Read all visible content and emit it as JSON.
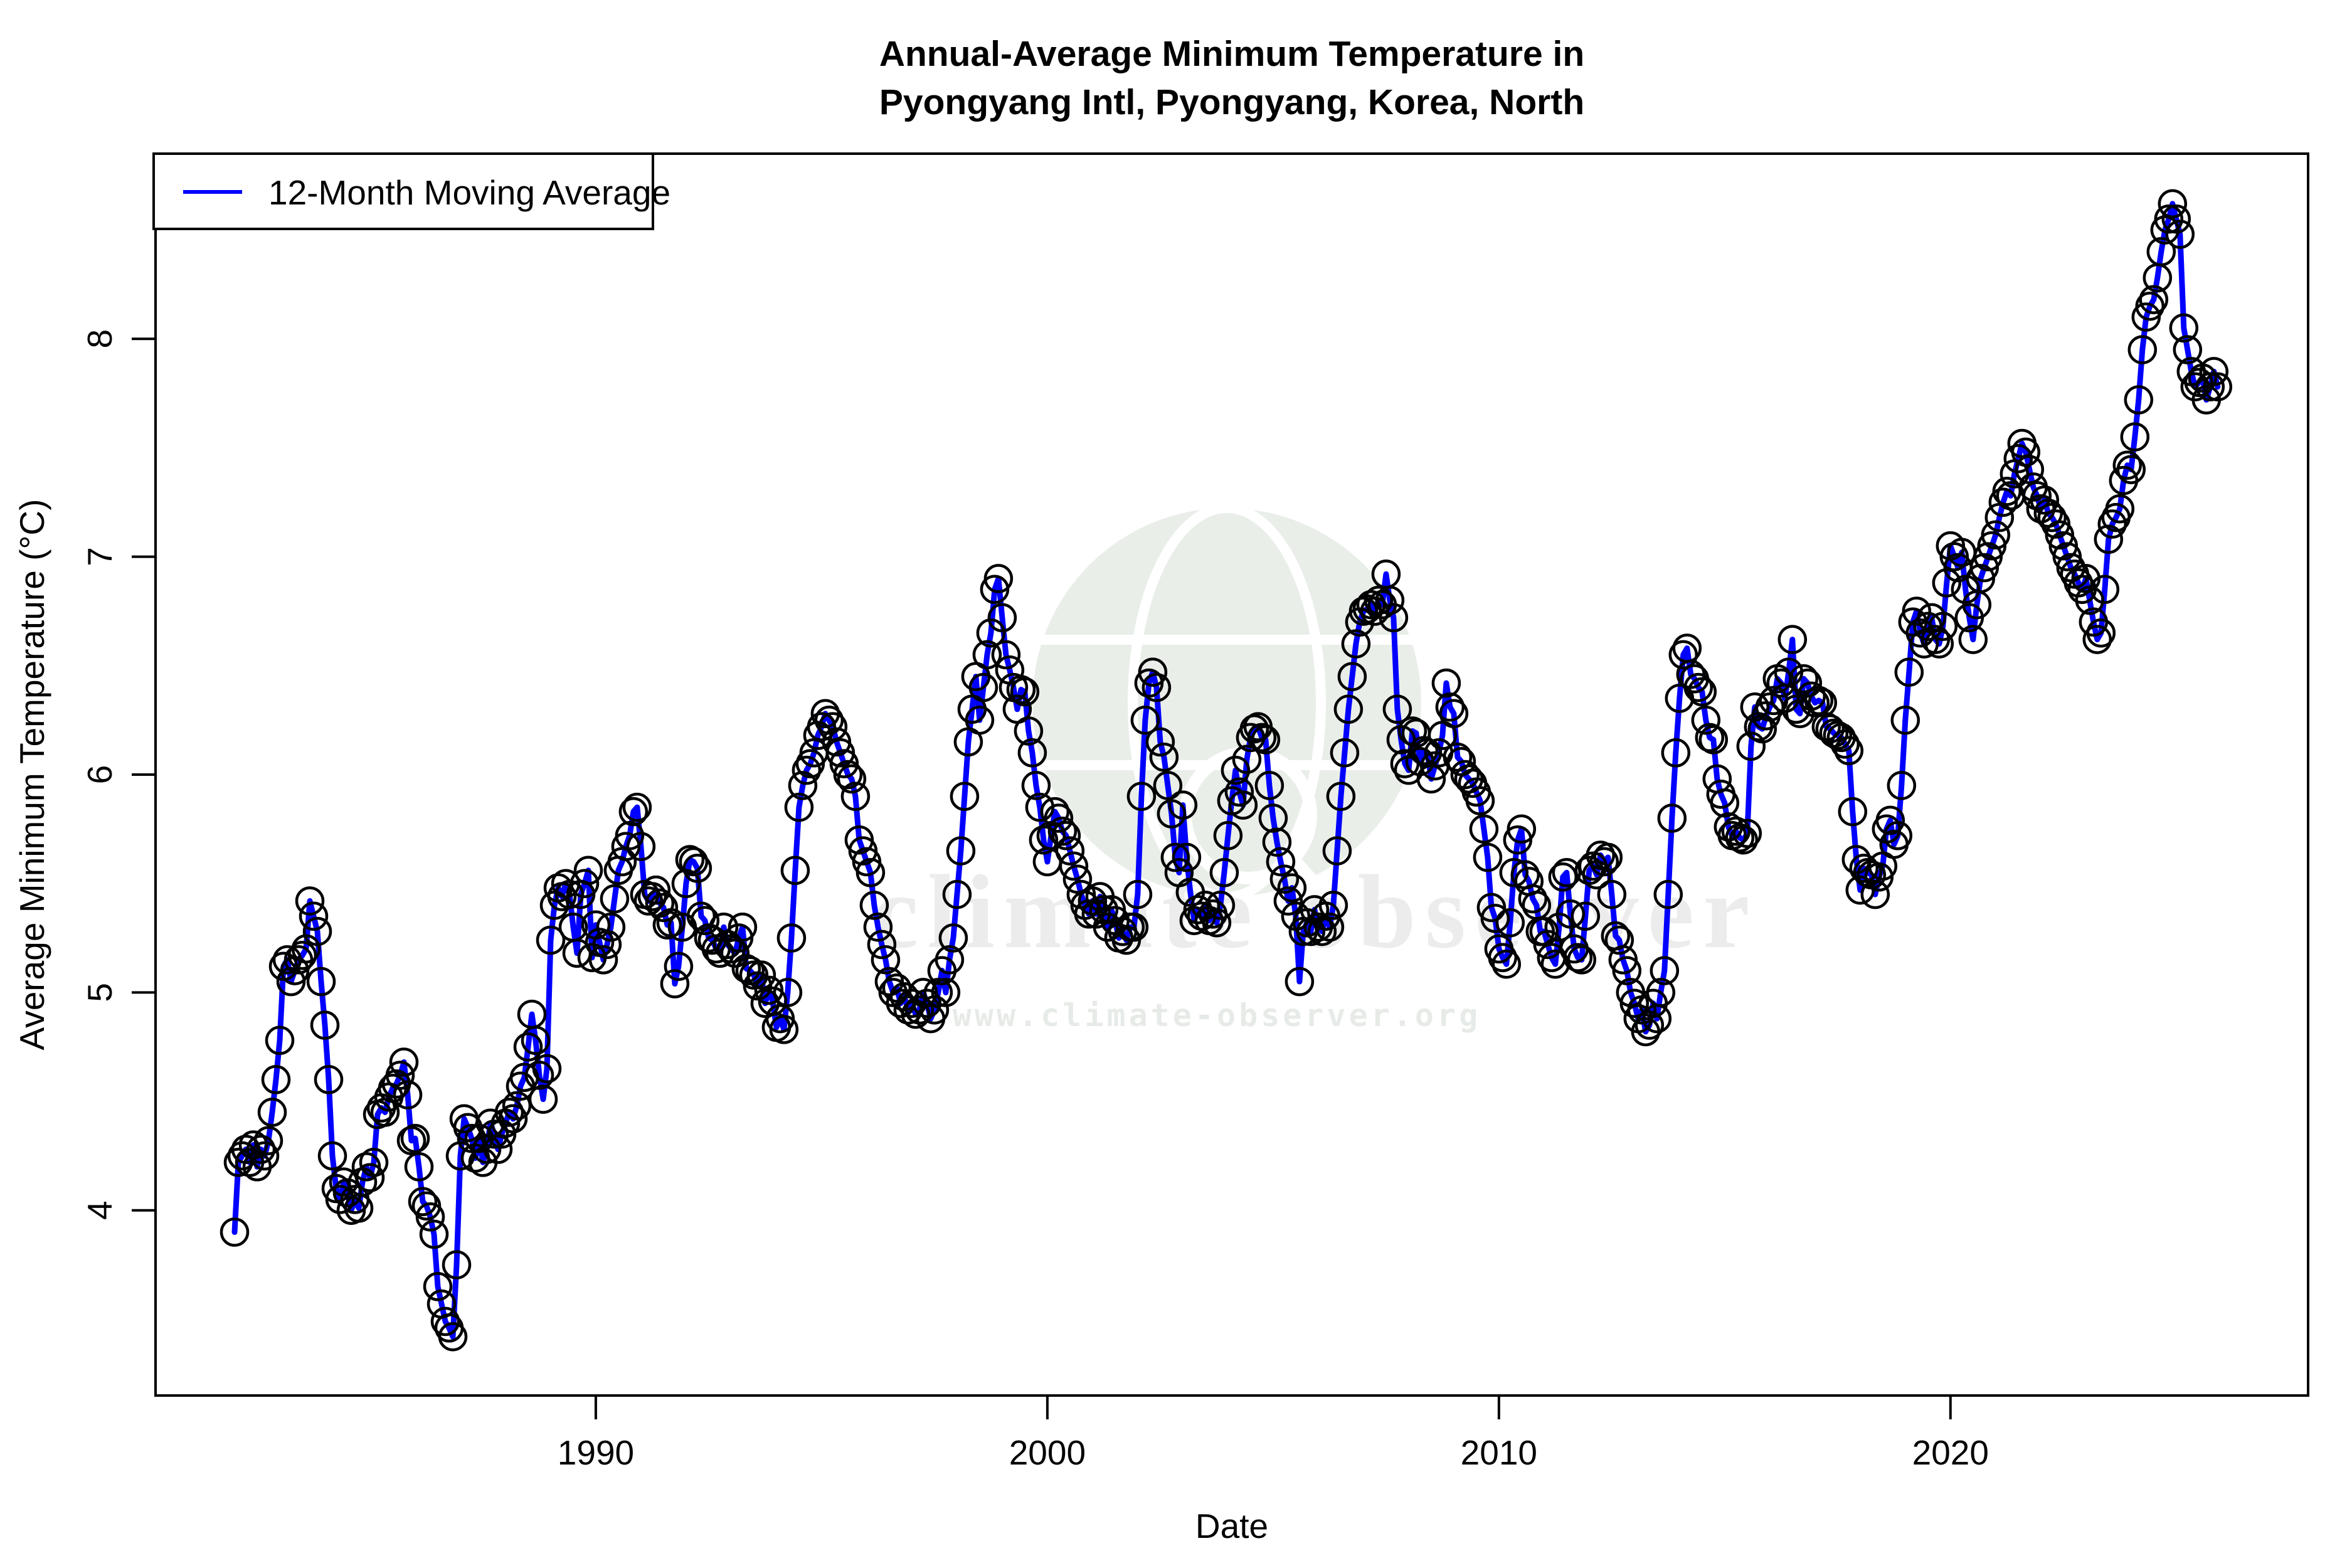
{
  "title": {
    "line1": "Annual-Average Minimum Temperature in",
    "line2": "Pyongyang Intl, Pyongyang, Korea, North"
  },
  "legend": {
    "label": "12-Month Moving Average",
    "line_color": "#0000ff"
  },
  "watermark": {
    "brand_text": "climate observer",
    "url_text": "www.climate-observer.org",
    "globe_icon": "globe-magnifier-icon",
    "color_globe": "#e9eee9",
    "color_text": "#ececec"
  },
  "chart_data": {
    "type": "line",
    "title": "Annual-Average Minimum Temperature in Pyongyang Intl, Pyongyang, Korea, North",
    "xlabel": "Date",
    "ylabel": "Average Minimum Temperature (°C)",
    "legend_position": "top-left",
    "grid": false,
    "xlim": [
      1980.25,
      2027.92
    ],
    "ylim": [
      3.15,
      8.85
    ],
    "x_ticks": [
      {
        "year": 1990,
        "label": "1990"
      },
      {
        "year": 2000,
        "label": "2000"
      },
      {
        "year": 2010,
        "label": "2010"
      },
      {
        "year": 2020,
        "label": "2020"
      }
    ],
    "y_ticks": [
      {
        "value": 4,
        "label": "4"
      },
      {
        "value": 5,
        "label": "5"
      },
      {
        "value": 6,
        "label": "6"
      },
      {
        "value": 7,
        "label": "7"
      },
      {
        "value": 8,
        "label": "8"
      }
    ],
    "line_color": "#0000ff",
    "marker": "open-circle",
    "marker_color": "#000000",
    "series_name": "12-Month Moving Average",
    "start_year": 1982,
    "monthly_values_by_year": {
      "1982": [
        3.9,
        4.22,
        4.25,
        4.28,
        4.22,
        4.3,
        4.2,
        4.28,
        4.25,
        4.32,
        4.45,
        4.6
      ],
      "1983": [
        4.78,
        5.12,
        5.15,
        5.05,
        5.1,
        5.15,
        5.17,
        5.2,
        5.42,
        5.35,
        5.28,
        5.05
      ],
      "1984": [
        4.85,
        4.6,
        4.25,
        4.1,
        4.05,
        4.13,
        4.08,
        4.0,
        4.05,
        4.01,
        4.13,
        4.2
      ],
      "1985": [
        4.15,
        4.22,
        4.44,
        4.47,
        4.45,
        4.52,
        4.56,
        4.58,
        4.62,
        4.68,
        4.53,
        4.32
      ],
      "1986": [
        4.33,
        4.2,
        4.04,
        4.02,
        3.97,
        3.89,
        3.65,
        3.57,
        3.49,
        3.46,
        3.42,
        3.75
      ],
      "1987": [
        4.25,
        4.42,
        4.38,
        4.33,
        4.24,
        4.33,
        4.22,
        4.28,
        4.4,
        4.35,
        4.28,
        4.35
      ],
      "1988": [
        4.4,
        4.45,
        4.42,
        4.48,
        4.57,
        4.61,
        4.75,
        4.9,
        4.78,
        4.62,
        4.51,
        4.65
      ],
      "1989": [
        5.24,
        5.4,
        5.48,
        5.44,
        5.5,
        5.45,
        5.3,
        5.18,
        5.45,
        5.5,
        5.56,
        5.16
      ],
      "1990": [
        5.31,
        5.23,
        5.15,
        5.22,
        5.3,
        5.43,
        5.56,
        5.6,
        5.67,
        5.72,
        5.83,
        5.85
      ],
      "1991": [
        5.67,
        5.45,
        5.42,
        5.44,
        5.47,
        5.41,
        5.39,
        5.31,
        5.32,
        5.04,
        5.12,
        5.3
      ],
      "1992": [
        5.5,
        5.61,
        5.6,
        5.57,
        5.35,
        5.33,
        5.25,
        5.24,
        5.2,
        5.18,
        5.3,
        5.22
      ],
      "1993": [
        5.2,
        5.18,
        5.25,
        5.3,
        5.11,
        5.1,
        5.08,
        5.03,
        5.08,
        4.95,
        5.01,
        4.96
      ],
      "1994": [
        4.84,
        4.88,
        4.83,
        5.0,
        5.25,
        5.56,
        5.85,
        5.95,
        6.02,
        6.05,
        6.1,
        6.18
      ],
      "1995": [
        6.22,
        6.28,
        6.25,
        6.22,
        6.15,
        6.1,
        6.05,
        6.0,
        5.98,
        5.9,
        5.7,
        5.65
      ],
      "1996": [
        5.6,
        5.55,
        5.4,
        5.3,
        5.22,
        5.15,
        5.05,
        5.0,
        5.02,
        4.95,
        4.98,
        4.92
      ],
      "1997": [
        4.95,
        4.9,
        4.92,
        5.0,
        4.95,
        4.88,
        4.92,
        5.0,
        5.1,
        5.0,
        5.15,
        5.25
      ],
      "1998": [
        5.45,
        5.65,
        5.9,
        6.15,
        6.3,
        6.45,
        6.25,
        6.4,
        6.55,
        6.65,
        6.85,
        6.9
      ],
      "1999": [
        6.72,
        6.55,
        6.48,
        6.4,
        6.3,
        6.39,
        6.38,
        6.2,
        6.1,
        5.95,
        5.85,
        5.7
      ],
      "2000": [
        5.6,
        5.72,
        5.83,
        5.8,
        5.74,
        5.72,
        5.65,
        5.58,
        5.52,
        5.45,
        5.4,
        5.36
      ],
      "2001": [
        5.42,
        5.36,
        5.44,
        5.38,
        5.3,
        5.38,
        5.33,
        5.25,
        5.28,
        5.24,
        5.3,
        5.3
      ],
      "2002": [
        5.45,
        5.9,
        6.25,
        6.42,
        6.47,
        6.4,
        6.15,
        6.08,
        5.95,
        5.82,
        5.62,
        5.55
      ],
      "2003": [
        5.86,
        5.62,
        5.46,
        5.33,
        5.38,
        5.35,
        5.4,
        5.33,
        5.36,
        5.32,
        5.4,
        5.55
      ],
      "2004": [
        5.72,
        5.88,
        6.02,
        5.92,
        5.86,
        6.07,
        6.17,
        6.21,
        6.22,
        6.17,
        6.16,
        5.95
      ],
      "2005": [
        5.8,
        5.69,
        5.6,
        5.52,
        5.42,
        5.48,
        5.35,
        5.05,
        5.28,
        5.32,
        5.28,
        5.38
      ],
      "2006": [
        5.3,
        5.28,
        5.35,
        5.3,
        5.4,
        5.65,
        5.9,
        6.1,
        6.3,
        6.45,
        6.6,
        6.7
      ],
      "2007": [
        6.75,
        6.76,
        6.78,
        6.75,
        6.8,
        6.78,
        6.92,
        6.8,
        6.72,
        6.3,
        6.16,
        6.05
      ],
      "2008": [
        6.02,
        6.2,
        6.19,
        6.06,
        6.11,
        6.1,
        5.98,
        6.04,
        6.1,
        6.18,
        6.42,
        6.31
      ],
      "2009": [
        6.28,
        6.08,
        6.06,
        6.0,
        5.98,
        5.96,
        5.92,
        5.88,
        5.75,
        5.62,
        5.39,
        5.34
      ],
      "2010": [
        5.2,
        5.16,
        5.13,
        5.32,
        5.55,
        5.7,
        5.75,
        5.54,
        5.51,
        5.43,
        5.4,
        5.28
      ],
      "2011": [
        5.28,
        5.22,
        5.16,
        5.13,
        5.3,
        5.53,
        5.55,
        5.36,
        5.2,
        5.16,
        5.15,
        5.35
      ],
      "2012": [
        5.56,
        5.58,
        5.54,
        5.63,
        5.6,
        5.62,
        5.45,
        5.26,
        5.24,
        5.15,
        5.1,
        5.0
      ],
      "2013": [
        4.95,
        4.88,
        4.92,
        4.82,
        4.85,
        4.95,
        4.88,
        5.0,
        5.1,
        5.45,
        5.8,
        6.1
      ],
      "2014": [
        6.35,
        6.55,
        6.58,
        6.46,
        6.44,
        6.4,
        6.38,
        6.25,
        6.17,
        6.16,
        5.98,
        5.91
      ],
      "2015": [
        5.87,
        5.76,
        5.72,
        5.74,
        5.71,
        5.7,
        5.73,
        6.13,
        6.31,
        6.22,
        6.21,
        6.27
      ],
      "2016": [
        6.31,
        6.34,
        6.44,
        6.42,
        6.35,
        6.47,
        6.62,
        6.3,
        6.28,
        6.44,
        6.42,
        6.36
      ],
      "2017": [
        6.33,
        6.34,
        6.33,
        6.22,
        6.21,
        6.19,
        6.18,
        6.17,
        6.14,
        6.11,
        5.83,
        5.61
      ],
      "2018": [
        5.47,
        5.57,
        5.55,
        5.54,
        5.45,
        5.53,
        5.58,
        5.75,
        5.79,
        5.68,
        5.72,
        5.95
      ],
      "2019": [
        6.25,
        6.47,
        6.7,
        6.75,
        6.65,
        6.6,
        6.68,
        6.72,
        6.62,
        6.6,
        6.68,
        6.88
      ],
      "2020": [
        7.05,
        7.0,
        6.95,
        7.02,
        6.85,
        6.72,
        6.62,
        6.78,
        6.9,
        6.95,
        7.0,
        7.05
      ],
      "2021": [
        7.1,
        7.18,
        7.25,
        7.3,
        7.28,
        7.38,
        7.45,
        7.52,
        7.48,
        7.4,
        7.32,
        7.28
      ],
      "2022": [
        7.22,
        7.26,
        7.2,
        7.18,
        7.15,
        7.1,
        7.05,
        7.0,
        6.95,
        6.92,
        6.88,
        6.85
      ],
      "2023": [
        6.9,
        6.8,
        6.7,
        6.62,
        6.65,
        6.85,
        7.08,
        7.15,
        7.18,
        7.22,
        7.35,
        7.42
      ],
      "2024": [
        7.4,
        7.55,
        7.72,
        7.95,
        8.1,
        8.15,
        8.18,
        8.28,
        8.4,
        8.5,
        8.55,
        8.62
      ],
      "2025": [
        8.55,
        8.48,
        8.05,
        7.95,
        7.85,
        7.78,
        7.8,
        7.82,
        7.72,
        7.78,
        7.85,
        7.78
      ]
    }
  }
}
